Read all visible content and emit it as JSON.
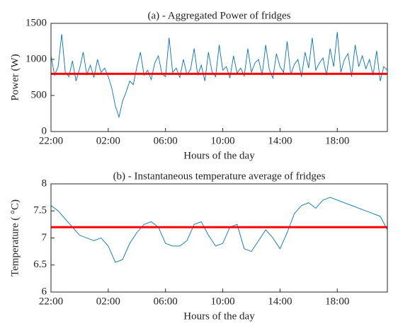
{
  "chart_data": [
    {
      "type": "line",
      "title": "(a) - Aggregated Power of fridges",
      "xlabel": "Hours of the day",
      "ylabel": "Power (W)",
      "x": [
        0,
        0.25,
        0.5,
        0.75,
        1,
        1.25,
        1.5,
        1.75,
        2,
        2.25,
        2.5,
        2.75,
        3,
        3.25,
        3.5,
        3.75,
        4,
        4.25,
        4.5,
        4.75,
        5,
        5.25,
        5.5,
        5.75,
        6,
        6.25,
        6.5,
        6.75,
        7,
        7.25,
        7.5,
        7.75,
        8,
        8.25,
        8.5,
        8.75,
        9,
        9.25,
        9.5,
        9.75,
        10,
        10.25,
        10.5,
        10.75,
        11,
        11.25,
        11.5,
        11.75,
        12,
        12.25,
        12.5,
        12.75,
        13,
        13.25,
        13.5,
        13.75,
        14,
        14.25,
        14.5,
        14.75,
        15,
        15.25,
        15.5,
        15.75,
        16,
        16.25,
        16.5,
        16.75,
        17,
        17.25,
        17.5,
        17.75,
        18,
        18.25,
        18.5,
        18.75,
        19,
        19.25,
        19.5,
        19.75,
        20,
        20.25,
        20.5,
        20.75,
        21,
        21.25,
        21.5,
        21.75,
        22,
        22.25,
        22.5,
        22.75,
        23,
        23.25,
        23.5
      ],
      "series": [
        {
          "color": "#0072bd",
          "values": [
            1050,
            780,
            900,
            1350,
            820,
            760,
            980,
            700,
            870,
            1100,
            790,
            920,
            750,
            1000,
            820,
            880,
            760,
            600,
            350,
            200,
            420,
            550,
            700,
            650,
            900,
            1100,
            780,
            850,
            720,
            950,
            1050,
            800,
            760,
            1300,
            820,
            880,
            750,
            1000,
            790,
            860,
            1150,
            780,
            920,
            700,
            1100,
            830,
            760,
            1200,
            850,
            900,
            740,
            1050,
            810,
            880,
            770,
            1150,
            820,
            950,
            1000,
            780,
            1200,
            860,
            740,
            1080,
            900,
            820,
            1250,
            790,
            930,
            1000,
            760,
            1100,
            880,
            1300,
            850,
            950,
            1020,
            780,
            1150,
            900,
            1380,
            820,
            1000,
            1080,
            760,
            1200,
            900,
            1050,
            870,
            1000,
            780,
            1120,
            700,
            900,
            850
          ]
        }
      ],
      "reference_line": {
        "value": 800,
        "color": "#ff0000"
      },
      "xlim": [
        0,
        23.5
      ],
      "xticks": [
        {
          "value": 0,
          "label": "22:00"
        },
        {
          "value": 4,
          "label": "02:00"
        },
        {
          "value": 8,
          "label": "06:00"
        },
        {
          "value": 12,
          "label": "10:00"
        },
        {
          "value": 16,
          "label": "14:00"
        },
        {
          "value": 20,
          "label": "18:00"
        }
      ],
      "ylim": [
        0,
        1500
      ],
      "yticks": [
        0,
        500,
        1000,
        1500
      ]
    },
    {
      "type": "line",
      "title": "(b) - Instantaneous temperature average of fridges",
      "xlabel": "Hours of the day",
      "ylabel": "Temperature ( °C)",
      "x": [
        0,
        0.5,
        1,
        1.5,
        2,
        2.5,
        3,
        3.5,
        4,
        4.5,
        5,
        5.5,
        6,
        6.5,
        7,
        7.5,
        8,
        8.5,
        9,
        9.5,
        10,
        10.5,
        11,
        11.5,
        12,
        12.5,
        13,
        13.5,
        14,
        14.5,
        15,
        15.5,
        16,
        16.5,
        17,
        17.5,
        18,
        18.5,
        19,
        19.5,
        20,
        20.5,
        21,
        21.5,
        22,
        22.5,
        23,
        23.5
      ],
      "series": [
        {
          "color": "#0072bd",
          "values": [
            7.6,
            7.5,
            7.35,
            7.2,
            7.05,
            7.0,
            6.95,
            7.0,
            6.85,
            6.55,
            6.6,
            6.9,
            7.1,
            7.25,
            7.3,
            7.2,
            6.9,
            6.85,
            6.85,
            6.95,
            7.25,
            7.3,
            7.05,
            6.85,
            6.9,
            7.2,
            7.25,
            6.8,
            6.75,
            6.95,
            7.15,
            7.0,
            6.8,
            7.1,
            7.45,
            7.6,
            7.65,
            7.55,
            7.7,
            7.75,
            7.7,
            7.65,
            7.6,
            7.55,
            7.5,
            7.45,
            7.4,
            7.15
          ]
        }
      ],
      "reference_line": {
        "value": 7.2,
        "color": "#ff0000"
      },
      "xlim": [
        0,
        23.5
      ],
      "xticks": [
        {
          "value": 0,
          "label": "22:00"
        },
        {
          "value": 4,
          "label": "02:00"
        },
        {
          "value": 8,
          "label": "06:00"
        },
        {
          "value": 12,
          "label": "10:00"
        },
        {
          "value": 16,
          "label": "14:00"
        },
        {
          "value": 20,
          "label": "18:00"
        }
      ],
      "ylim": [
        6,
        8
      ],
      "yticks": [
        6,
        6.5,
        7,
        7.5,
        8
      ]
    }
  ]
}
